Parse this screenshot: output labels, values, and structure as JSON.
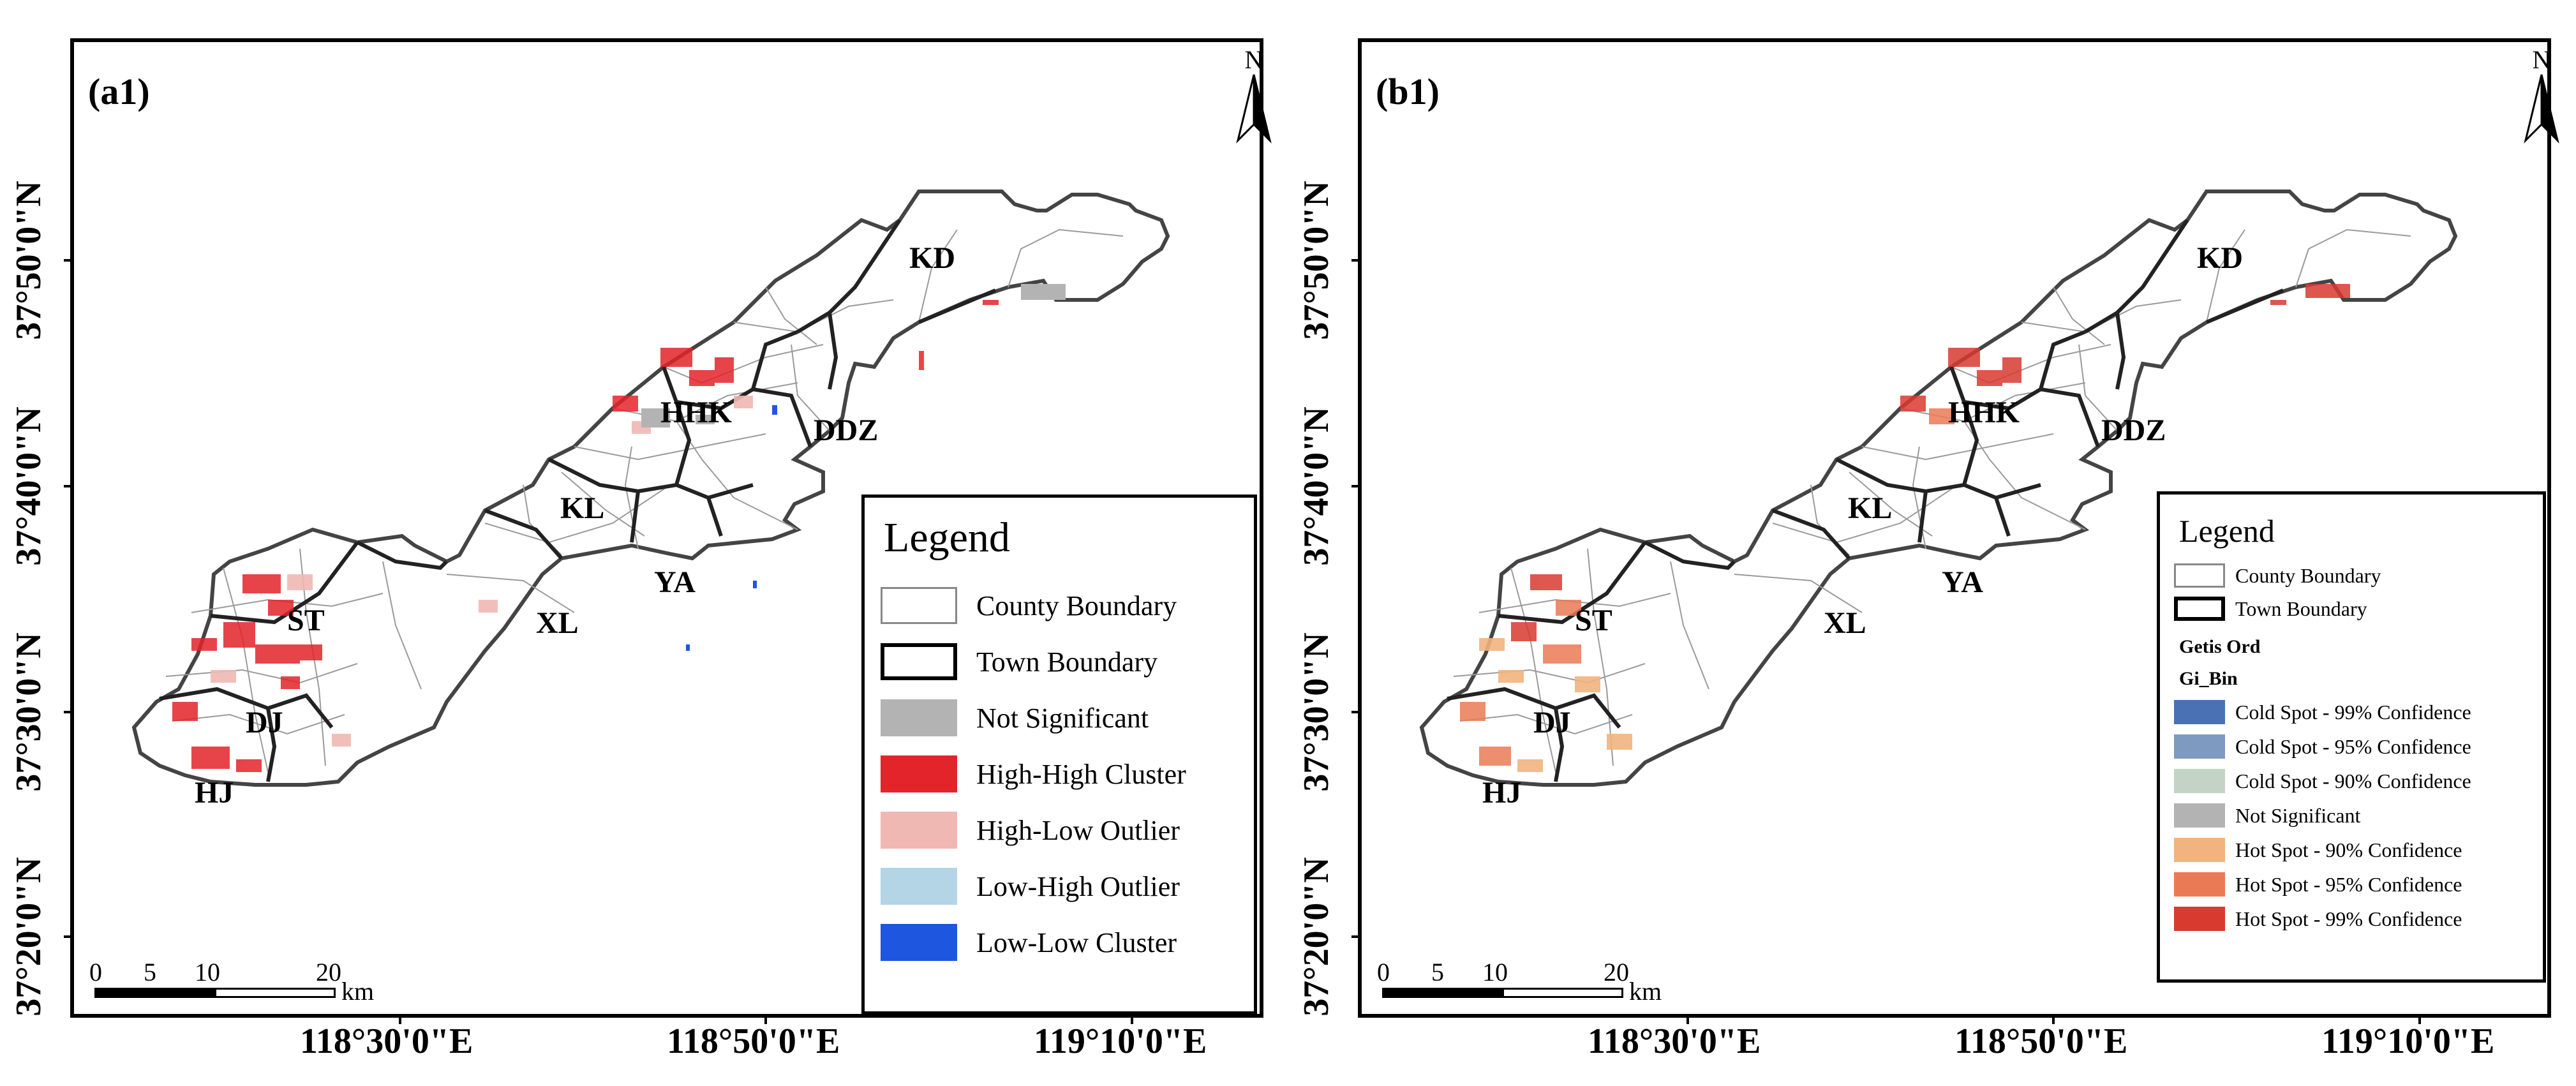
{
  "panels": [
    {
      "label": "(a1)",
      "north": "N",
      "legend": {
        "title": "Legend",
        "items": [
          {
            "label": "County Boundary",
            "kind": "outline-thin"
          },
          {
            "label": "Town Boundary",
            "kind": "outline-thick"
          },
          {
            "label": "Not Significant",
            "color": "#b3b3b3"
          },
          {
            "label": "High-High Cluster",
            "color": "#e3242b"
          },
          {
            "label": "High-Low Outlier",
            "color": "#f0b8b3"
          },
          {
            "label": "Low-High Outlier",
            "color": "#b3d5e6"
          },
          {
            "label": "Low-Low Cluster",
            "color": "#1f56e0"
          }
        ]
      }
    },
    {
      "label": "(b1)",
      "north": "N",
      "legend": {
        "title": "Legend",
        "items": [
          {
            "label": "County Boundary",
            "kind": "outline-thin"
          },
          {
            "label": "Town Boundary",
            "kind": "outline-thick"
          }
        ],
        "field_name": "Getis Ord",
        "field_sub": "Gi_Bin",
        "bins": [
          {
            "label": "Cold Spot - 99% Confidence",
            "color": "#4a71b3"
          },
          {
            "label": "Cold Spot - 95% Confidence",
            "color": "#7e9ac0"
          },
          {
            "label": "Cold Spot - 90% Confidence",
            "color": "#c3d4c6"
          },
          {
            "label": "Not Significant",
            "color": "#b3b3b3"
          },
          {
            "label": "Hot Spot - 90% Confidence",
            "color": "#f1b47f"
          },
          {
            "label": "Hot Spot - 95% Confidence",
            "color": "#ea7a56"
          },
          {
            "label": "Hot Spot - 99% Confidence",
            "color": "#d93a30"
          }
        ]
      }
    }
  ],
  "lat_labels": [
    "37°50'0\"N",
    "37°40'0\"N",
    "37°30'0\"N",
    "37°20'0\"N"
  ],
  "lon_labels": [
    "118°30'0\"E",
    "118°50'0\"E",
    "119°10'0\"E"
  ],
  "scale": {
    "ticks": [
      "0",
      "5",
      "10",
      "20"
    ],
    "unit": "km"
  },
  "towns": [
    "KD",
    "HHK",
    "DDZ",
    "KL",
    "YA",
    "XL",
    "ST",
    "DJ",
    "HJ"
  ]
}
